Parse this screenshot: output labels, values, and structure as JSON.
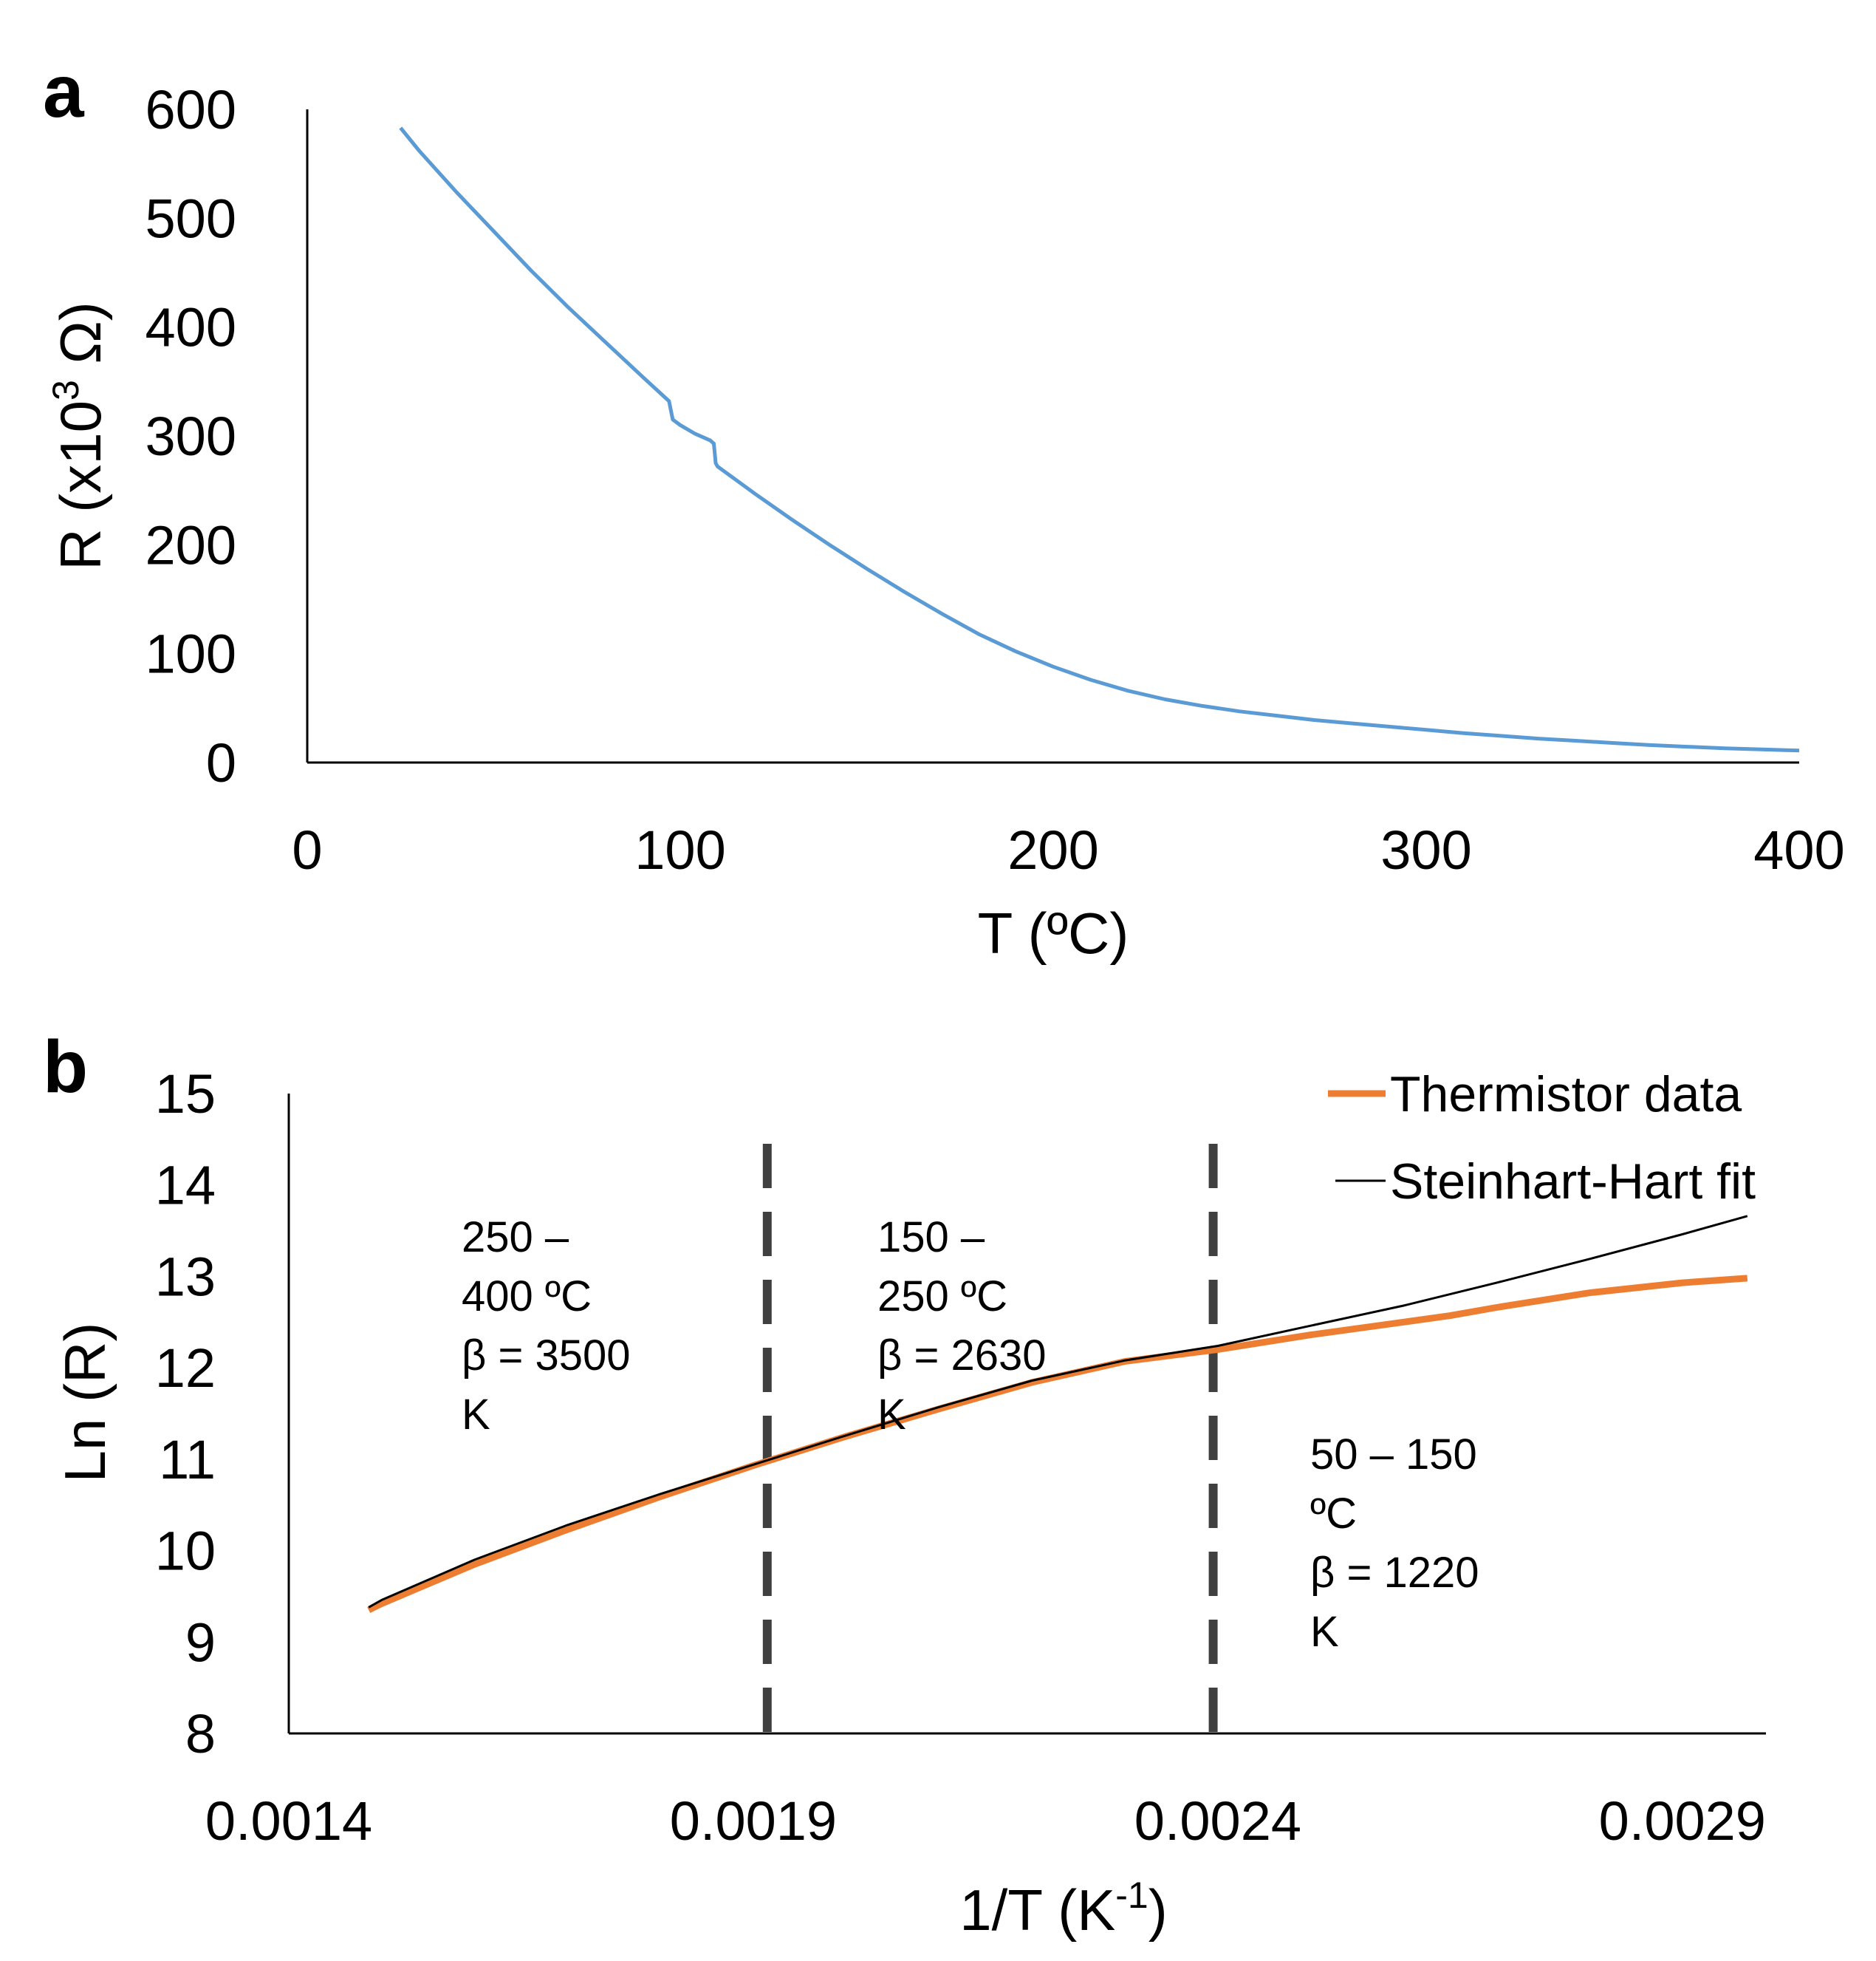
{
  "chart_data": [
    {
      "panel_label": "a",
      "type": "line",
      "xlabel": "T (ºC)",
      "ylabel_main": "R (x10",
      "ylabel_sup": "3",
      "ylabel_tail": " Ω)",
      "xlim": [
        0,
        400
      ],
      "ylim": [
        0,
        600
      ],
      "xticks": [
        "0",
        "100",
        "200",
        "300",
        "400"
      ],
      "yticks": [
        "0",
        "100",
        "200",
        "300",
        "400",
        "500",
        "600"
      ],
      "grid": false,
      "series": [
        {
          "color": "#5b9bd5",
          "x": [
            25,
            30,
            40,
            50,
            60,
            70,
            80,
            90,
            97,
            98,
            100,
            104,
            108,
            109,
            109.5,
            110,
            120,
            130,
            140,
            150,
            160,
            170,
            180,
            190,
            200,
            210,
            220,
            230,
            240,
            250,
            260,
            270,
            280,
            290,
            300,
            310,
            320,
            330,
            340,
            350,
            360,
            370,
            380,
            390,
            400
          ],
          "y": [
            583,
            562,
            524,
            488,
            452,
            418,
            386,
            354,
            332,
            315,
            310,
            302,
            296,
            293,
            275,
            272,
            247,
            223,
            200,
            178,
            157,
            137,
            118,
            102,
            88,
            76,
            66,
            58,
            52,
            47,
            43,
            39,
            36,
            33,
            30,
            27,
            24.5,
            22,
            20,
            18,
            16,
            14.5,
            13,
            12,
            11
          ]
        }
      ]
    },
    {
      "panel_label": "b",
      "type": "line",
      "xlabel_main": "1/T (K",
      "xlabel_sup": "-1",
      "xlabel_tail": ")",
      "ylabel": "Ln (R)",
      "xlim": [
        0.0014,
        0.00299
      ],
      "ylim": [
        8,
        15
      ],
      "xticks": [
        {
          "v": 0.0014,
          "label": "0.0014"
        },
        {
          "v": 0.0019,
          "label": "0.0019"
        },
        {
          "v": 0.0024,
          "label": "0.0024"
        },
        {
          "v": 0.0029,
          "label": "0.0029"
        }
      ],
      "yticks": [
        "8",
        "9",
        "10",
        "11",
        "12",
        "13",
        "14",
        "15"
      ],
      "grid": false,
      "legend_position": "top-right",
      "series": [
        {
          "name": "Thermistor data",
          "color": "#ed7d31",
          "x": [
            0.001486,
            0.0015,
            0.0016,
            0.0017,
            0.0018,
            0.0019,
            0.002,
            0.0021,
            0.0022,
            0.0023,
            0.0024,
            0.0025,
            0.0026,
            0.00265,
            0.0027,
            0.0028,
            0.0029,
            0.00297
          ],
          "y": [
            9.35,
            9.42,
            9.85,
            10.23,
            10.59,
            10.93,
            11.25,
            11.55,
            11.84,
            12.07,
            12.2,
            12.36,
            12.5,
            12.57,
            12.66,
            12.82,
            12.93,
            12.98
          ]
        },
        {
          "name": "Steinhart-Hart fit",
          "color": "#000000",
          "x": [
            0.001486,
            0.0015,
            0.0016,
            0.0017,
            0.0018,
            0.0019,
            0.002,
            0.0021,
            0.0022,
            0.0023,
            0.0024,
            0.0025,
            0.0026,
            0.0027,
            0.0028,
            0.0029,
            0.00297
          ],
          "y": [
            9.38,
            9.46,
            9.9,
            10.28,
            10.62,
            10.94,
            11.26,
            11.57,
            11.86,
            12.08,
            12.24,
            12.46,
            12.68,
            12.93,
            13.19,
            13.46,
            13.66
          ]
        }
      ],
      "dividers": [
        0.001915,
        0.002395
      ],
      "annotations": [
        {
          "lines": [
            "250 –",
            "400 ºC",
            "β = 3500",
            "K"
          ]
        },
        {
          "lines": [
            "150 –",
            "250 ºC",
            "β = 2630",
            "K"
          ]
        },
        {
          "lines": [
            "50 – 150",
            "ºC",
            "β = 1220",
            "K"
          ]
        }
      ]
    }
  ]
}
